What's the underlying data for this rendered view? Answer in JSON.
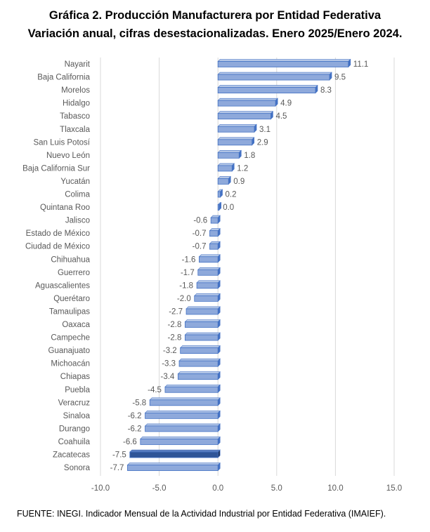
{
  "title": "Gráfica 2. Producción Manufacturera por Entidad Federativa",
  "subtitle": "Variación anual, cifras desestacionalizadas. Enero 2025/Enero 2024.",
  "source": "FUENTE: INEGI. Indicador Mensual de la Actividad Industrial por Entidad Federativa (IMAIEF).",
  "colors": {
    "bar": "#8EA9DB",
    "bar_highlight": "#2F5597",
    "bar_edge": "#4472C4",
    "grid": "#D9D9D9",
    "text": "#595959"
  },
  "chart_data": {
    "type": "bar",
    "orientation": "horizontal",
    "categories": [
      "Nayarit",
      "Baja California",
      "Morelos",
      "Hidalgo",
      "Tabasco",
      "Tlaxcala",
      "San Luis Potosí",
      "Nuevo León",
      "Baja California Sur",
      "Yucatán",
      "Colima",
      "Quintana Roo",
      "Jalisco",
      "Estado de México",
      "Ciudad de México",
      "Chihuahua",
      "Guerrero",
      "Aguascalientes",
      "Querétaro",
      "Tamaulipas",
      "Oaxaca",
      "Campeche",
      "Guanajuato",
      "Michoacán",
      "Chiapas",
      "Puebla",
      "Veracruz",
      "Sinaloa",
      "Durango",
      "Coahuila",
      "Zacatecas",
      "Sonora"
    ],
    "values": [
      11.1,
      9.5,
      8.3,
      4.9,
      4.5,
      3.1,
      2.9,
      1.8,
      1.2,
      0.9,
      0.2,
      0.0,
      -0.6,
      -0.7,
      -0.7,
      -1.6,
      -1.7,
      -1.8,
      -2.0,
      -2.7,
      -2.8,
      -2.8,
      -3.2,
      -3.3,
      -3.4,
      -4.5,
      -5.8,
      -6.2,
      -6.2,
      -6.6,
      -7.5,
      -7.7
    ],
    "labels": [
      "11.1",
      "9.5",
      "8.3",
      "4.9",
      "4.5",
      "3.1",
      "2.9",
      "1.8",
      "1.2",
      "0.9",
      "0.2",
      "0.0",
      "-0.6",
      "-0.7",
      "-0.7",
      "-1.6",
      "-1.7",
      "-1.8",
      "-2.0",
      "-2.7",
      "-2.8",
      "-2.8",
      "-3.2",
      "-3.3",
      "-3.4",
      "-4.5",
      "-5.8",
      "-6.2",
      "-6.2",
      "-6.6",
      "-7.5",
      "-7.7"
    ],
    "highlight": "Zacatecas",
    "xlim": [
      -10,
      15
    ],
    "xticks": [
      -10,
      -5,
      0,
      5,
      10,
      15
    ],
    "xtick_labels": [
      "-10.0",
      "-5.0",
      "0.0",
      "5.0",
      "10.0",
      "15.0"
    ],
    "grid": true,
    "legend": false
  }
}
